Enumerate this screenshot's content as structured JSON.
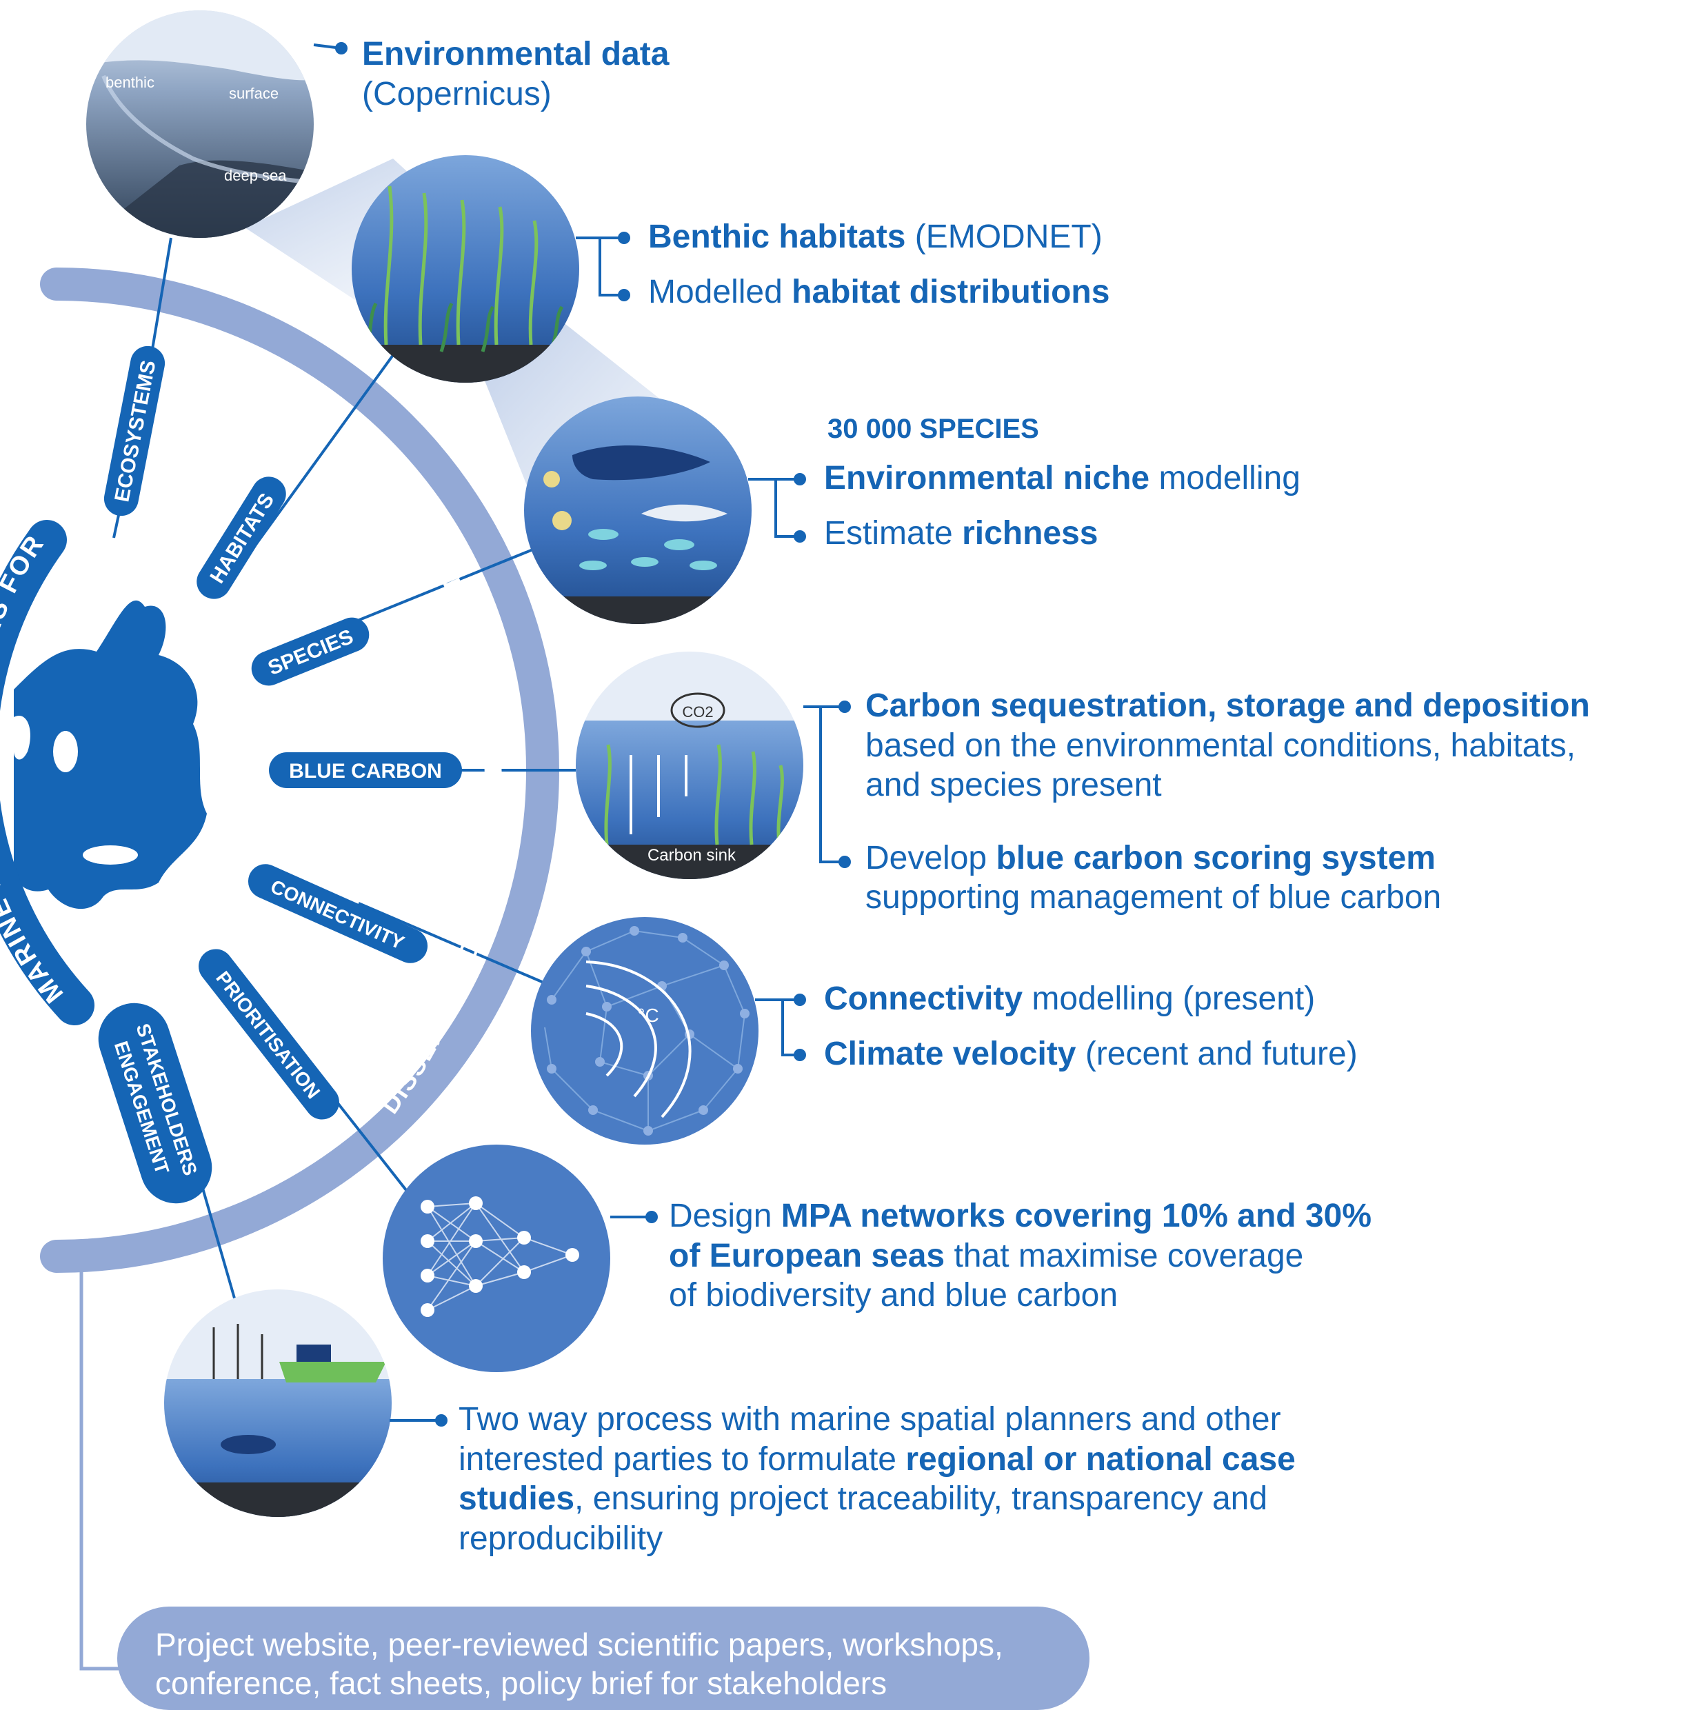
{
  "items": {
    "env": {
      "title": "Environmental data",
      "sub": "(Copernicus)"
    },
    "habitat": {
      "l1_b": "Benthic habitats",
      "l1_r": " (EMODNET)",
      "l2_r": "Modelled ",
      "l2_b": "habitat distributions"
    },
    "species": {
      "count": "30 000 SPECIES",
      "l1_b": "Environmental niche",
      "l1_r": " modelling",
      "l2_r": "Estimate ",
      "l2_b": "richness"
    },
    "carbon": {
      "l1_b": "Carbon sequestration, storage and deposition",
      "l2": "based on the environmental conditions, habitats,",
      "l3": "and species present",
      "l4_r": "Develop ",
      "l4_b": "blue carbon scoring system",
      "l5": "supporting management of blue carbon"
    },
    "connect": {
      "l1_b": "Connectivity",
      "l1_r": " modelling (present)",
      "l2_b": "Climate velocity",
      "l2_r": " (recent and future)"
    },
    "mpa": {
      "l1_r": "Design ",
      "l1_b": "MPA networks covering 10% and 30%",
      "l2_b": "of European seas",
      "l2_r": " that maximise coverage",
      "l3": "of biodiversity and blue carbon"
    },
    "stake": {
      "l1": "Two way process with marine spatial planners and other",
      "l2_r": "interested parties to formulate ",
      "l2_b": "regional or national case",
      "l3_b": "studies",
      "l3_r": ", ensuring project traceability, transparency and",
      "l4": "reproducibility"
    }
  },
  "circle_labels": {
    "benthic": "benthic",
    "surface": "surface",
    "deep_sea": "deep sea",
    "co2": "CO2",
    "carbon_sink": "Carbon sink",
    "deg_c": "°C"
  },
  "spokes": {
    "ecosystems": "ECOSYSTEMS",
    "habitats": "HABITATS",
    "species": "SPECIES",
    "blue_carbon": "BLUE CARBON",
    "connectivity": "CONNECTIVITY",
    "prioritisation": "PRIORITISATION",
    "stakeholders_1": "STAKEHOLDERS",
    "stakeholders_2": "ENGAGEMENT"
  },
  "arcs": {
    "mpa_title": "MARINE PROTECTED AREAS FOR EUROPE",
    "dissemination": "DISSEMINATION, EXPLOITATION AND COMMUNICATION"
  },
  "footer": {
    "text": "Project website, peer-reviewed scientific papers, workshops, conference, fact sheets, policy brief for stakeholders"
  },
  "colors": {
    "dark_blue": "#1565b5",
    "arc": "#93a9d6",
    "mid_blue": "#4a7cc4"
  }
}
